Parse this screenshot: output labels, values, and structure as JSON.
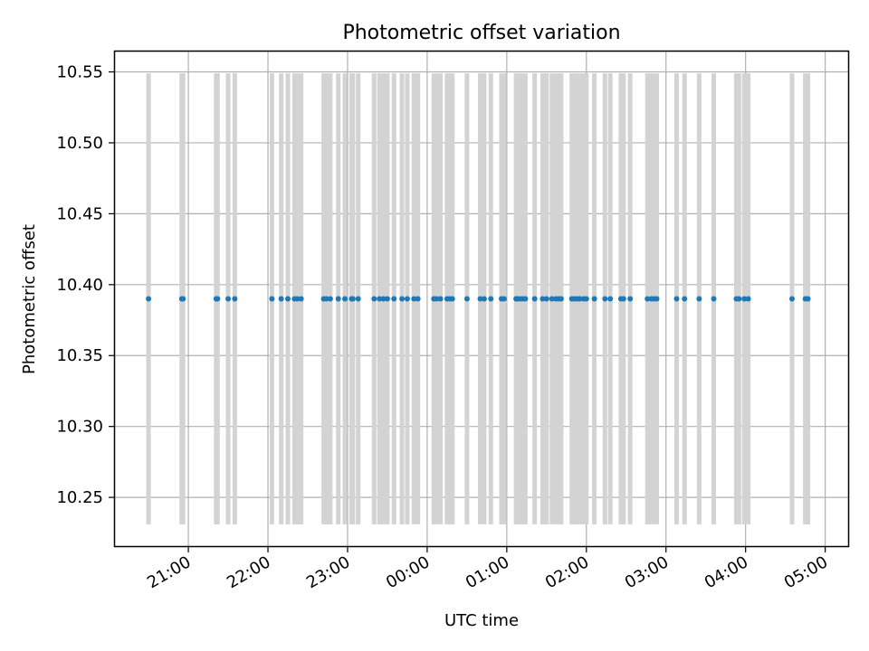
{
  "chart_data": {
    "type": "scatter",
    "title": "Photometric offset variation",
    "xlabel": "UTC time",
    "ylabel": "Photometric offset",
    "x_axis": {
      "kind": "time",
      "start": "20:04",
      "end": "05:18",
      "ticks": [
        "21:00",
        "22:00",
        "23:00",
        "00:00",
        "01:00",
        "02:00",
        "03:00",
        "04:00",
        "05:00"
      ]
    },
    "y_axis": {
      "ylim": [
        10.215,
        10.565
      ],
      "ticks": [
        "10.25",
        "10.30",
        "10.35",
        "10.40",
        "10.45",
        "10.50",
        "10.55"
      ]
    },
    "grid": true,
    "colors": {
      "points": "#1f77b4",
      "error_bars": "#d3d3d3",
      "grid": "#b0b0b0"
    },
    "error_bar_range": [
      10.231,
      10.549
    ],
    "series": [
      {
        "y": 10.39,
        "x": [
          "20:30",
          "20:55",
          "20:56",
          "21:21",
          "21:22",
          "21:30",
          "21:35",
          "22:03",
          "22:10",
          "22:15",
          "22:20",
          "22:22",
          "22:25",
          "22:42",
          "22:44",
          "22:47",
          "22:53",
          "22:58",
          "23:03",
          "23:04",
          "23:08",
          "23:20",
          "23:24",
          "23:27",
          "23:30",
          "23:35",
          "23:41",
          "23:45",
          "23:50",
          "23:53",
          "00:05",
          "00:07",
          "00:10",
          "00:15",
          "00:17",
          "00:19",
          "00:30",
          "00:40",
          "00:43",
          "00:48",
          "00:56",
          "00:58",
          "01:07",
          "01:08",
          "01:10",
          "01:12",
          "01:14",
          "01:21",
          "01:27",
          "01:30",
          "01:34",
          "01:37",
          "01:39",
          "01:41",
          "01:49",
          "01:51",
          "01:53",
          "01:55",
          "01:58",
          "02:00",
          "02:06",
          "02:14",
          "02:18",
          "02:26",
          "02:28",
          "02:33",
          "02:46",
          "02:49",
          "02:51",
          "02:53",
          "03:08",
          "03:14",
          "03:25",
          "03:36",
          "03:53",
          "03:55",
          "03:59",
          "04:02",
          "04:35",
          "04:45",
          "04:47"
        ]
      }
    ]
  }
}
